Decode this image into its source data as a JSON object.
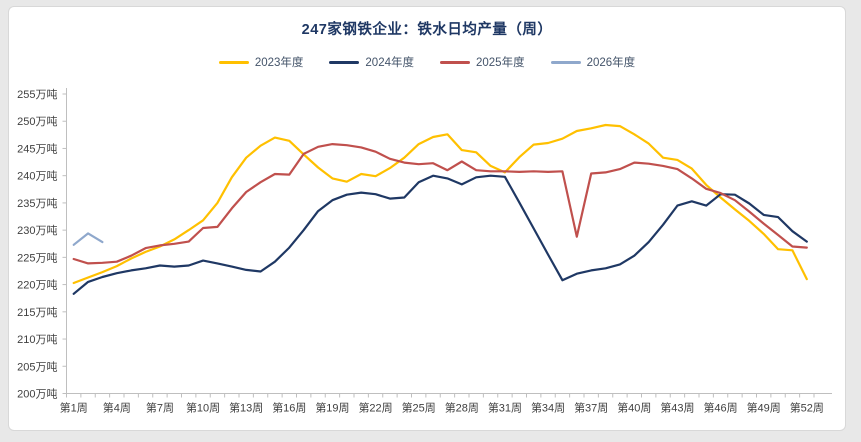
{
  "page": {
    "background": "#e8e8e8",
    "card_background": "#ffffff",
    "card_border": "#d8d8d8"
  },
  "header": {
    "title": "247家钢铁企业：铁水日均产量（周）",
    "title_color": "#1f3864"
  },
  "legend": {
    "items": [
      {
        "label": "2023年度",
        "color": "#FFC000"
      },
      {
        "label": "2024年度",
        "color": "#1F3864"
      },
      {
        "label": "2025年度",
        "color": "#C0504D"
      },
      {
        "label": "2026年度",
        "color": "#8FA8CC"
      }
    ]
  },
  "chart_data": {
    "type": "line",
    "title": "247家钢铁企业：铁水日均产量（周）",
    "grid": false,
    "legend_position": "top",
    "axis_color": "#bfbfbf",
    "tick_text_color": "#404040",
    "x_axis": {
      "weeks_total": 52,
      "labeled_weeks": [
        1,
        4,
        7,
        10,
        13,
        16,
        19,
        22,
        25,
        28,
        31,
        34,
        37,
        40,
        43,
        46,
        49,
        52
      ],
      "tick_labels": [
        "第1周",
        "第4周",
        "第7周",
        "第10周",
        "第13周",
        "第16周",
        "第19周",
        "第22周",
        "第25周",
        "第28周",
        "第31周",
        "第34周",
        "第37周",
        "第40周",
        "第43周",
        "第46周",
        "第49周",
        "第52周"
      ]
    },
    "y_axis": {
      "min": 200,
      "max": 255,
      "step": 5,
      "suffix": "万吨",
      "tick_labels": [
        "255万吨",
        "250万吨",
        "245万吨",
        "240万吨",
        "235万吨",
        "230万吨",
        "225万吨",
        "220万吨",
        "215万吨",
        "210万吨",
        "205万吨",
        "200万吨"
      ]
    },
    "series": [
      {
        "name": "2023年度",
        "color": "#FFC000",
        "values": [
          220.3,
          221.3,
          222.3,
          223.4,
          224.8,
          226.0,
          227.0,
          228.3,
          230.0,
          231.8,
          235.0,
          239.7,
          243.3,
          245.5,
          247.0,
          246.4,
          243.9,
          241.5,
          239.5,
          238.9,
          240.3,
          239.9,
          241.4,
          243.3,
          245.8,
          247.1,
          247.6,
          244.7,
          244.3,
          241.8,
          240.6,
          243.4,
          245.7,
          246.0,
          246.8,
          248.2,
          248.7,
          249.3,
          249.1,
          247.6,
          245.9,
          243.3,
          242.9,
          241.3,
          238.3,
          236.0,
          233.8,
          231.7,
          229.3,
          226.5,
          226.3,
          221.0
        ]
      },
      {
        "name": "2024年度",
        "color": "#1F3864",
        "values": [
          218.3,
          220.5,
          221.4,
          222.1,
          222.6,
          223.0,
          223.5,
          223.3,
          223.5,
          224.4,
          223.9,
          223.3,
          222.7,
          222.4,
          224.2,
          226.8,
          230.0,
          233.5,
          235.5,
          236.5,
          236.9,
          236.6,
          235.8,
          236.0,
          238.8,
          240.0,
          239.5,
          238.4,
          239.7,
          240.0,
          239.8,
          235.1,
          230.3,
          225.5,
          220.8,
          222.0,
          222.6,
          223.0,
          223.7,
          225.3,
          227.8,
          231.0,
          234.5,
          235.3,
          234.5,
          236.6,
          236.5,
          234.9,
          232.8,
          232.4,
          229.8,
          227.9
        ]
      },
      {
        "name": "2025年度",
        "color": "#C0504D",
        "values": [
          224.7,
          223.9,
          224.0,
          224.2,
          225.3,
          226.7,
          227.2,
          227.5,
          227.9,
          230.4,
          230.6,
          234.0,
          237.0,
          238.8,
          240.3,
          240.2,
          244.0,
          245.3,
          245.8,
          245.6,
          245.2,
          244.4,
          243.1,
          242.4,
          242.1,
          242.3,
          241.0,
          242.6,
          241.0,
          240.8,
          240.8,
          240.7,
          240.8,
          240.7,
          240.8,
          228.8,
          240.4,
          240.6,
          241.2,
          242.4,
          242.2,
          241.8,
          241.2,
          239.5,
          237.6,
          236.8,
          235.5,
          233.4,
          231.2,
          229.1,
          227.0,
          226.8
        ]
      },
      {
        "name": "2026年度",
        "color": "#8FA8CC",
        "values": [
          227.3,
          229.4,
          227.8
        ]
      }
    ]
  }
}
